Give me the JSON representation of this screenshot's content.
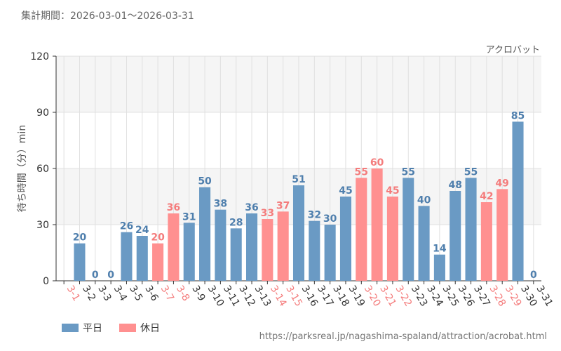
{
  "header": {
    "period_label": "集計期間：2026-03-01～2026-03-31"
  },
  "chart_data": {
    "type": "bar",
    "title": "アクロバット",
    "xlabel": "",
    "ylabel": "待ち時間（分）min",
    "ylim": [
      0,
      120
    ],
    "yticks": [
      0,
      30,
      60,
      90,
      120
    ],
    "grid": true,
    "legend_position": "bottom-left",
    "categories": [
      "3-1",
      "3-2",
      "3-3",
      "3-4",
      "3-5",
      "3-6",
      "3-7",
      "3-8",
      "3-9",
      "3-10",
      "3-11",
      "3-12",
      "3-13",
      "3-14",
      "3-15",
      "3-16",
      "3-17",
      "3-18",
      "3-19",
      "3-20",
      "3-21",
      "3-22",
      "3-23",
      "3-24",
      "3-25",
      "3-26",
      "3-27",
      "3-28",
      "3-29",
      "3-30",
      "3-31"
    ],
    "values": [
      null,
      20,
      0,
      0,
      26,
      24,
      20,
      36,
      31,
      50,
      38,
      28,
      36,
      33,
      37,
      51,
      32,
      30,
      45,
      55,
      60,
      45,
      55,
      40,
      14,
      48,
      55,
      42,
      49,
      85,
      0
    ],
    "day_type": [
      "holiday",
      "weekday",
      "weekday",
      "weekday",
      "weekday",
      "weekday",
      "holiday",
      "holiday",
      "weekday",
      "weekday",
      "weekday",
      "weekday",
      "weekday",
      "holiday",
      "holiday",
      "weekday",
      "weekday",
      "weekday",
      "weekday",
      "holiday",
      "holiday",
      "holiday",
      "weekday",
      "weekday",
      "weekday",
      "weekday",
      "weekday",
      "holiday",
      "holiday",
      "weekday",
      "weekday"
    ],
    "series": [
      {
        "key": "weekday",
        "name": "平日",
        "color": "#6a9ac4"
      },
      {
        "key": "holiday",
        "name": "休日",
        "color": "#ff9090"
      }
    ],
    "colors": {
      "weekday_label": "#4f7fad",
      "holiday_label": "#f47c7c",
      "weekday_tick": "#333333",
      "holiday_tick": "#f47c7c",
      "grid": "#e0e0e0",
      "band": "#f5f5f5"
    }
  },
  "footer": {
    "source_url": "https://parksreal.jp/nagashima-spaland/attraction/acrobat.html"
  }
}
